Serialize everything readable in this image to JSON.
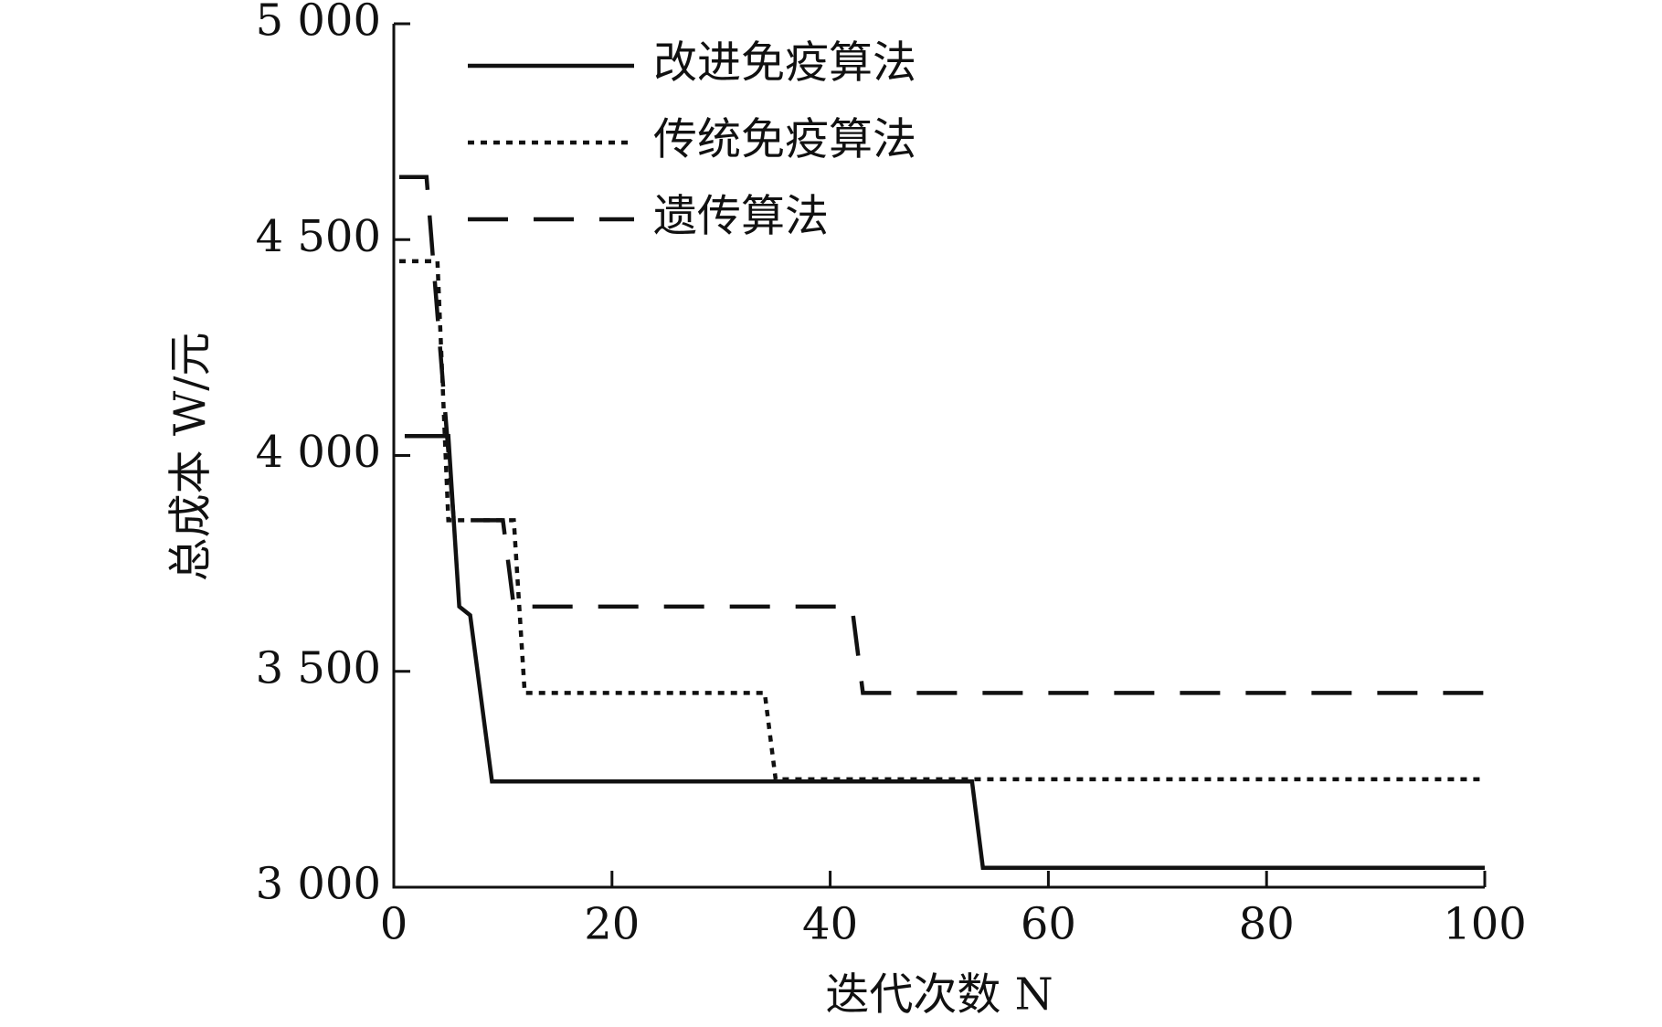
{
  "chart_data": {
    "type": "line",
    "xlabel": "迭代次数 N",
    "ylabel": "总成本 W/元",
    "xlim": [
      0,
      100
    ],
    "xticks": [
      0,
      20,
      40,
      60,
      80,
      100
    ],
    "ylim": [
      3000,
      5000
    ],
    "yticks": [
      {
        "value": 3000,
        "label": "3 000"
      },
      {
        "value": 3500,
        "label": "3 500"
      },
      {
        "value": 4000,
        "label": "4 000"
      },
      {
        "value": 4500,
        "label": "4 500"
      },
      {
        "value": 5000,
        "label": "5 000"
      }
    ],
    "legend": "upper left",
    "series": [
      {
        "name": "改进免疫算法",
        "color": "#111111",
        "style": "solid",
        "x": [
          1,
          5,
          6,
          7,
          9,
          53,
          54,
          100
        ],
        "values": [
          4045,
          4045,
          3650,
          3630,
          3245,
          3245,
          3045,
          3045
        ]
      },
      {
        "name": "传统免疫算法",
        "color": "#111111",
        "style": "dotted",
        "x": [
          0.5,
          4,
          5,
          11,
          12,
          34,
          35,
          100
        ],
        "values": [
          4450,
          4450,
          3850,
          3850,
          3450,
          3450,
          3250,
          3250
        ]
      },
      {
        "name": "遗传算法",
        "color": "#111111",
        "style": "dashed",
        "x": [
          0.5,
          3,
          5.5,
          10,
          11,
          42,
          43,
          100
        ],
        "values": [
          4645,
          4645,
          3850,
          3850,
          3650,
          3650,
          3450,
          3450
        ]
      }
    ]
  }
}
